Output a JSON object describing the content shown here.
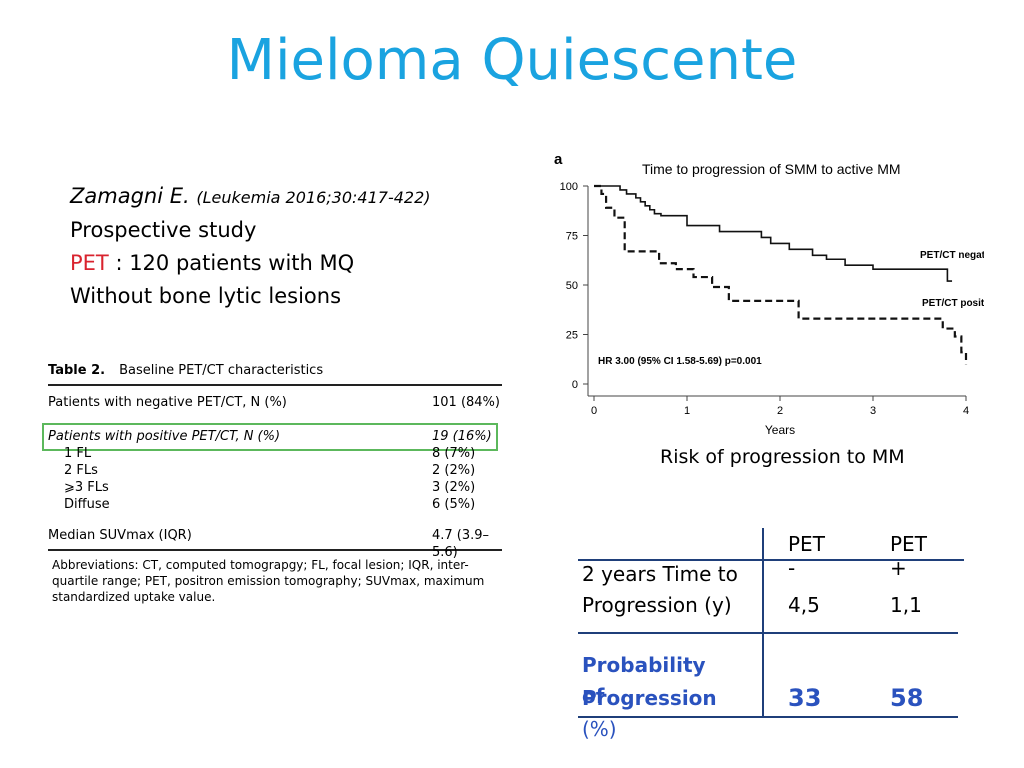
{
  "slide": {
    "title": "Mieloma Quiescente"
  },
  "reference": {
    "author": "Zamagni E.",
    "citation": "(Leukemia 2016;30:417-422)",
    "line2": "Prospective study",
    "pet_label": "PET",
    "line3_rest": " : 120 patients with MQ",
    "line4": "Without bone lytic lesions"
  },
  "table2": {
    "label": "Table 2.",
    "title": "Baseline PET/CT characteristics",
    "rows": [
      {
        "label": "Patients with negative PET/CT, N (%)",
        "value": "101 (84%)"
      },
      {
        "label": "Patients with positive PET/CT, N (%)",
        "value": "19 (16%)"
      },
      {
        "label": "1 FL",
        "value": "8 (7%)"
      },
      {
        "label": "2 FLs",
        "value": "2 (2%)"
      },
      {
        "label": "⩾3 FLs",
        "value": "3 (2%)"
      },
      {
        "label": "Diffuse",
        "value": "6 (5%)"
      },
      {
        "label": "Median SUVmax (IQR)",
        "value": "4.7 (3.9–5.6)"
      }
    ],
    "abbreviations": "Abbreviations: CT, computed tomograpgy; FL, focal lesion; IQR, inter-quartile range; PET, positron emission tomography; SUVmax, maximum standardized uptake value."
  },
  "chart_data": {
    "type": "line",
    "panel_label": "a",
    "title": "Time to progression of SMM to active MM",
    "xlabel": "Years",
    "ylabel": "",
    "xlim": [
      0,
      4
    ],
    "ylim": [
      0,
      100
    ],
    "x_ticks": [
      "0",
      "1",
      "2",
      "3",
      "4"
    ],
    "y_ticks": [
      "0",
      "25",
      "50",
      "75",
      "100"
    ],
    "annotation": "HR 3.00 (95% CI 1.58-5.69) p=0.001",
    "grid": false,
    "series": [
      {
        "name": "PET/CT negative",
        "style": "solid",
        "x": [
          0,
          0.28,
          0.35,
          0.45,
          0.5,
          0.55,
          0.6,
          0.65,
          0.72,
          1.0,
          1.35,
          1.8,
          1.9,
          2.1,
          2.35,
          2.5,
          2.7,
          3.0,
          3.5,
          3.8,
          3.85,
          3.85
        ],
        "y": [
          100,
          98,
          96,
          94,
          92,
          90,
          88,
          86,
          85,
          80,
          77,
          74,
          71,
          68,
          65,
          63,
          60,
          58,
          58,
          52,
          52,
          52
        ]
      },
      {
        "name": "PET/CT positive",
        "style": "dashed",
        "x": [
          0,
          0.08,
          0.13,
          0.22,
          0.33,
          0.7,
          0.88,
          1.07,
          1.27,
          1.45,
          2.2,
          2.2,
          3.7,
          3.75,
          3.88,
          3.95,
          4.0
        ],
        "y": [
          100,
          96,
          89,
          84,
          67,
          61,
          58,
          54,
          49,
          42,
          42,
          33,
          33,
          28,
          24,
          16,
          10
        ]
      }
    ]
  },
  "chart_caption": "Risk of progression to MM",
  "pet_table": {
    "headers": [
      "PET -",
      "PET +"
    ],
    "rows": [
      {
        "label": "2 years Time to Progression (y)",
        "neg": "4,5",
        "pos": "1,1"
      },
      {
        "label_a": "Probability of",
        "label_b": "Progression",
        "label_c": " (%)",
        "neg": "33",
        "pos": "58"
      }
    ]
  },
  "colors": {
    "title": "#1aa3e0",
    "pet_text": "#d9232e",
    "highlight_box": "#5cb85c",
    "table_blue": "#2a52be",
    "table_lines": "#1f3f7a"
  }
}
